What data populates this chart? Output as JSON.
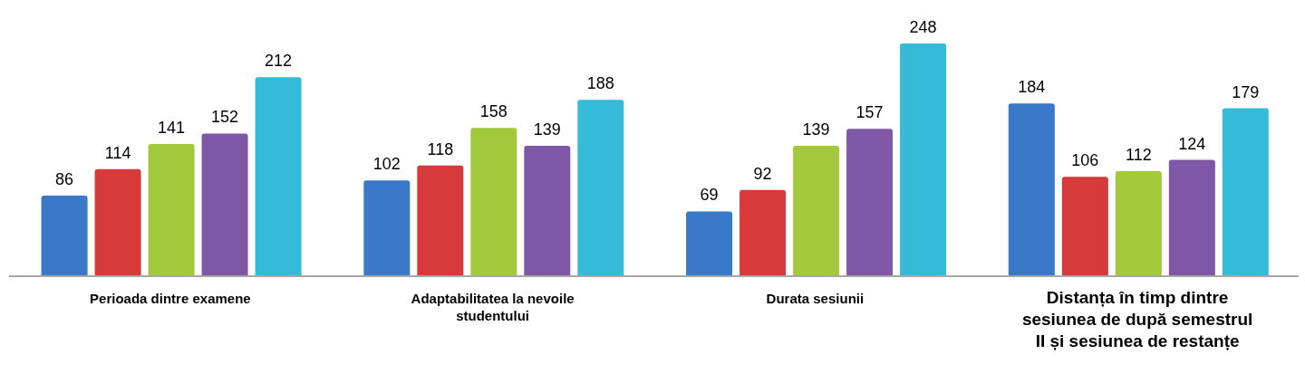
{
  "chart_data": {
    "type": "bar",
    "categories": [
      "Perioada dintre examene",
      "Adaptabilitatea la nevoile studentului",
      "Durata sesiunii",
      "Distanța în timp dintre sesiunea de după semestrul II și sesiunea de restanțe"
    ],
    "series": [
      {
        "color": "#3a78c9",
        "values": [
          86,
          102,
          69,
          184
        ]
      },
      {
        "color": "#d63a3a",
        "values": [
          114,
          118,
          92,
          106
        ]
      },
      {
        "color": "#a2c83c",
        "values": [
          141,
          158,
          139,
          112
        ]
      },
      {
        "color": "#7e57a6",
        "values": [
          152,
          139,
          157,
          124
        ]
      },
      {
        "color": "#35bad8",
        "values": [
          212,
          188,
          248,
          179
        ]
      }
    ],
    "data_labels": true,
    "grid": false,
    "legend": false
  }
}
